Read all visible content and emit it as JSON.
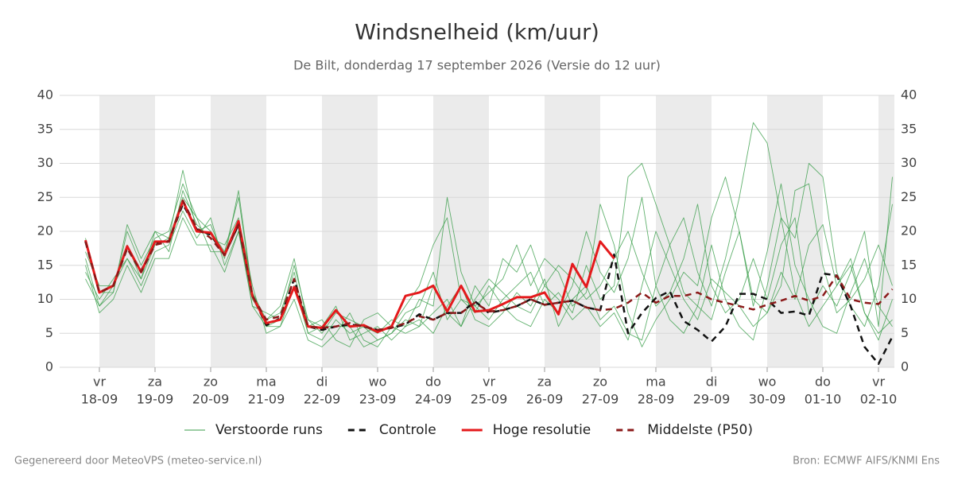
{
  "chart_data": {
    "type": "line",
    "title": "Windsnelheid (km/uur)",
    "subtitle": "De Bilt, donderdag 17 september 2026 (Versie do 12 uur)",
    "footer_left": "Gegenereerd door MeteoVPS (meteo-service.nl)",
    "footer_right": "Bron: ECMWF AIFS/KNMI Ens",
    "categories": [
      null,
      [
        "vr",
        "18-09"
      ],
      null,
      null,
      null,
      [
        "za",
        "19-09"
      ],
      null,
      null,
      null,
      [
        "zo",
        "20-09"
      ],
      null,
      null,
      null,
      [
        "ma",
        "21-09"
      ],
      null,
      null,
      null,
      [
        "di",
        "22-09"
      ],
      null,
      null,
      null,
      [
        "wo",
        "23-09"
      ],
      null,
      null,
      null,
      [
        "do",
        "24-09"
      ],
      null,
      null,
      null,
      [
        "vr",
        "25-09"
      ],
      null,
      null,
      null,
      [
        "za",
        "26-09"
      ],
      null,
      null,
      null,
      [
        "zo",
        "27-09"
      ],
      null,
      null,
      null,
      [
        "ma",
        "28-09"
      ],
      null,
      null,
      null,
      [
        "di",
        "29-09"
      ],
      null,
      null,
      null,
      [
        "wo",
        "30-09"
      ],
      null,
      null,
      null,
      [
        "do",
        "01-10"
      ],
      null,
      null,
      null,
      [
        "vr",
        "02-10"
      ],
      null
    ],
    "ylim": [
      0,
      40
    ],
    "yticks": [
      0,
      5,
      10,
      15,
      20,
      25,
      30,
      35,
      40
    ],
    "y2lim": [
      0,
      40
    ],
    "y2ticks": [
      0,
      5,
      10,
      15,
      20,
      25,
      30,
      35,
      40
    ],
    "grid": true,
    "ensemble": {
      "name": "Verstoorde runs",
      "color": "#3a9e4a",
      "members": [
        [
          16,
          9,
          11,
          20,
          15,
          19,
          20,
          27,
          22,
          20,
          17,
          25,
          11,
          7,
          8,
          14,
          5,
          4,
          7,
          5,
          6,
          4,
          5,
          8,
          9,
          14,
          7,
          10,
          9,
          7,
          10,
          12,
          14,
          9,
          11,
          8,
          15,
          10,
          12,
          28,
          30,
          24,
          18,
          11,
          9,
          7,
          14,
          20,
          10,
          8,
          12,
          26,
          27,
          15,
          8,
          10,
          13,
          18,
          12
        ],
        [
          14,
          10,
          13,
          16,
          12,
          17,
          18,
          23,
          19,
          22,
          15,
          20,
          9,
          6,
          6,
          12,
          7,
          6,
          9,
          4,
          5,
          6,
          4,
          6,
          7,
          5,
          9,
          12,
          7,
          6,
          8,
          11,
          9,
          13,
          6,
          10,
          12,
          7,
          9,
          5,
          4,
          12,
          18,
          22,
          14,
          9,
          16,
          25,
          36,
          33,
          22,
          11,
          6,
          9,
          12,
          15,
          8,
          5,
          7
        ],
        [
          17,
          12,
          12,
          18,
          13,
          20,
          17,
          26,
          21,
          19,
          18,
          22,
          12,
          5,
          6,
          10,
          4,
          3,
          5,
          8,
          4,
          3,
          6,
          9,
          12,
          18,
          22,
          10,
          8,
          12,
          9,
          7,
          6,
          10,
          8,
          12,
          20,
          14,
          11,
          16,
          25,
          12,
          7,
          5,
          9,
          18,
          10,
          6,
          4,
          12,
          22,
          19,
          30,
          28,
          14,
          9,
          6,
          12,
          24
        ],
        [
          15,
          8,
          10,
          15,
          11,
          16,
          16,
          22,
          18,
          18,
          14,
          20,
          10,
          7,
          9,
          16,
          6,
          7,
          4,
          3,
          7,
          8,
          6,
          5,
          6,
          8,
          10,
          6,
          12,
          9,
          16,
          14,
          18,
          12,
          10,
          7,
          9,
          6,
          8,
          4,
          12,
          20,
          15,
          10,
          7,
          13,
          11,
          9,
          6,
          8,
          14,
          10,
          18,
          21,
          12,
          16,
          8,
          4,
          10
        ],
        [
          19,
          11,
          11,
          21,
          16,
          20,
          19,
          29,
          20,
          21,
          16,
          26,
          11,
          6,
          7,
          15,
          7,
          5,
          8,
          7,
          6,
          5,
          7,
          6,
          10,
          9,
          25,
          14,
          9,
          11,
          13,
          18,
          12,
          16,
          14,
          9,
          11,
          24,
          18,
          8,
          3,
          7,
          10,
          14,
          12,
          22,
          28,
          20,
          9,
          17,
          27,
          15,
          10,
          6,
          5,
          11,
          16,
          9,
          6
        ],
        [
          13,
          9,
          12,
          16,
          13,
          18,
          19,
          25,
          22,
          17,
          17,
          21,
          9,
          8,
          7,
          12,
          5,
          6,
          6,
          6,
          3,
          4,
          5,
          7,
          6,
          12,
          8,
          6,
          10,
          13,
          11,
          9,
          8,
          12,
          15,
          13,
          10,
          12,
          16,
          20,
          14,
          9,
          11,
          16,
          24,
          12,
          8,
          10,
          16,
          10,
          18,
          22,
          8,
          12,
          9,
          14,
          20,
          6,
          28
        ]
      ]
    },
    "series": [
      {
        "name": "Controle",
        "color": "#111111",
        "dash": true,
        "values": [
          18.5,
          11,
          12,
          17.5,
          14.2,
          18.3,
          18.6,
          24,
          20.3,
          19.5,
          16.5,
          21,
          10.5,
          6.2,
          7.2,
          13,
          6,
          5.5,
          6,
          6.3,
          6,
          5.5,
          5.8,
          6.3,
          7.8,
          7,
          8,
          8,
          9.7,
          8,
          8.4,
          9,
          10,
          9.2,
          9.5,
          9.8,
          8.8,
          8.4,
          16.6,
          5,
          8,
          10.2,
          11.2,
          6.8,
          5.5,
          3.8,
          6,
          10.8,
          10.8,
          10,
          8,
          8.2,
          7.6,
          13.8,
          13.5,
          9,
          3,
          0.5,
          4.5
        ]
      },
      {
        "name": "Hoge resolutie",
        "color": "#e41a1c",
        "dash": false,
        "values": [
          18.7,
          11,
          12,
          17.8,
          14,
          18.5,
          18.5,
          24.5,
          20,
          19.8,
          16.5,
          21.5,
          10.5,
          6.5,
          7,
          11.8,
          6,
          5.8,
          8.4,
          6,
          6.2,
          5.2,
          6,
          10.5,
          11,
          12,
          8.2,
          12,
          8.2,
          8.4,
          9.3,
          10.3,
          10.3,
          11,
          7.8,
          15.2,
          11.8,
          18.5,
          16,
          null,
          null,
          null,
          null,
          null,
          null,
          null,
          null,
          null,
          null,
          null,
          null,
          null,
          null,
          null,
          null,
          null,
          null,
          null,
          null
        ]
      },
      {
        "name": "Middelste (P50)",
        "color": "#8b1a1a",
        "dash": true,
        "values": [
          18.5,
          11,
          12,
          17.5,
          14,
          18,
          18.5,
          24.5,
          20.5,
          19,
          16.5,
          21,
          10.5,
          7,
          7.5,
          13,
          6,
          5.8,
          6,
          6.5,
          6,
          5.5,
          5.8,
          6.5,
          7.5,
          7,
          8,
          8,
          9.5,
          8.2,
          8.4,
          9,
          10,
          9.2,
          9.5,
          9.8,
          8.8,
          8.4,
          8.6,
          9.5,
          11,
          9.5,
          10.5,
          10.5,
          11,
          10,
          9.5,
          9,
          8.5,
          9.2,
          9.8,
          10.5,
          9.8,
          10.5,
          13.5,
          10,
          9.5,
          9.3,
          11.5
        ]
      }
    ]
  }
}
